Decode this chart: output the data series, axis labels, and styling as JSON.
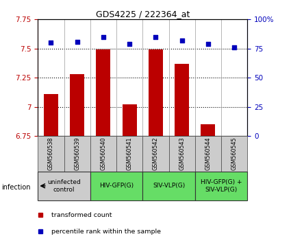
{
  "title": "GDS4225 / 222364_at",
  "samples": [
    "GSM560538",
    "GSM560539",
    "GSM560540",
    "GSM560541",
    "GSM560542",
    "GSM560543",
    "GSM560544",
    "GSM560545"
  ],
  "bar_values": [
    7.11,
    7.28,
    7.49,
    7.02,
    7.49,
    7.37,
    6.85,
    6.75
  ],
  "scatter_values": [
    80,
    81,
    85,
    79,
    85,
    82,
    79,
    76
  ],
  "ylim_left": [
    6.75,
    7.75
  ],
  "ylim_right": [
    0,
    100
  ],
  "yticks_left": [
    6.75,
    7.0,
    7.25,
    7.5,
    7.75
  ],
  "yticks_right": [
    0,
    25,
    50,
    75,
    100
  ],
  "ytick_labels_left": [
    "6.75",
    "7",
    "7.25",
    "7.5",
    "7.75"
  ],
  "ytick_labels_right": [
    "0",
    "25",
    "50",
    "75",
    "100%"
  ],
  "bar_color": "#bb0000",
  "scatter_color": "#0000bb",
  "bar_bottom": 6.75,
  "groups": [
    {
      "label": "uninfected\ncontrol",
      "start": 0,
      "end": 2,
      "color": "#cccccc"
    },
    {
      "label": "HIV-GFP(G)",
      "start": 2,
      "end": 4,
      "color": "#66dd66"
    },
    {
      "label": "SIV-VLP(G)",
      "start": 4,
      "end": 6,
      "color": "#66dd66"
    },
    {
      "label": "HIV-GFP(G) +\nSIV-VLP(G)",
      "start": 6,
      "end": 8,
      "color": "#66dd66"
    }
  ],
  "legend_items": [
    {
      "label": "transformed count",
      "color": "#bb0000"
    },
    {
      "label": "percentile rank within the sample",
      "color": "#0000bb"
    }
  ],
  "infection_label": "infection",
  "background_color": "#ffffff",
  "sample_bg_color": "#cccccc",
  "grid_dotted_vals": [
    7.0,
    7.25,
    7.5
  ]
}
